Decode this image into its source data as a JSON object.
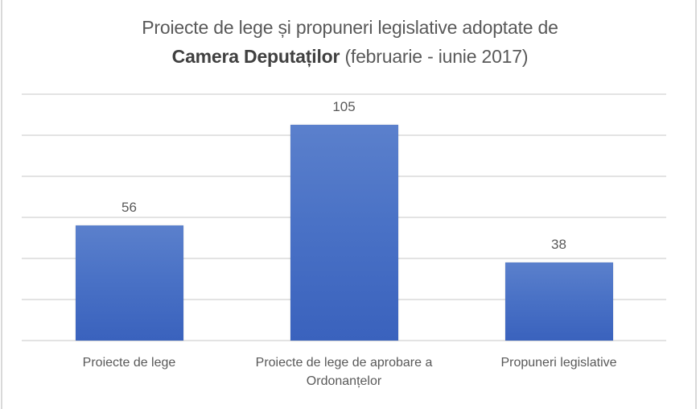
{
  "chart_data": {
    "type": "bar",
    "title": "Proiecte de lege și propuneri legislative adoptate de Camera Deputaților (februarie - iunie 2017)",
    "title_parts": {
      "line1": "Proiecte de lege și propuneri legislative adoptate de",
      "line2_bold": "Camera Deputaților",
      "line2_rest": " (februarie - iunie 2017)"
    },
    "categories": [
      "Proiecte de lege",
      "Proiecte de lege de aprobare a Ordonanțelor",
      "Propuneri legislative"
    ],
    "category_lines": [
      [
        "Proiecte de lege"
      ],
      [
        "Proiecte de lege de aprobare a",
        "Ordonanțelor"
      ],
      [
        "Propuneri legislative"
      ]
    ],
    "values": [
      56,
      105,
      38
    ],
    "data_labels": [
      "56",
      "105",
      "38"
    ],
    "xlabel": "",
    "ylabel": "",
    "ylim": [
      0,
      120
    ],
    "y_gridlines": [
      0,
      20,
      40,
      60,
      80,
      100,
      120
    ],
    "grid": true,
    "y_tick_labels_visible": false,
    "legend": "none",
    "bar_color": "#4a72c6"
  }
}
